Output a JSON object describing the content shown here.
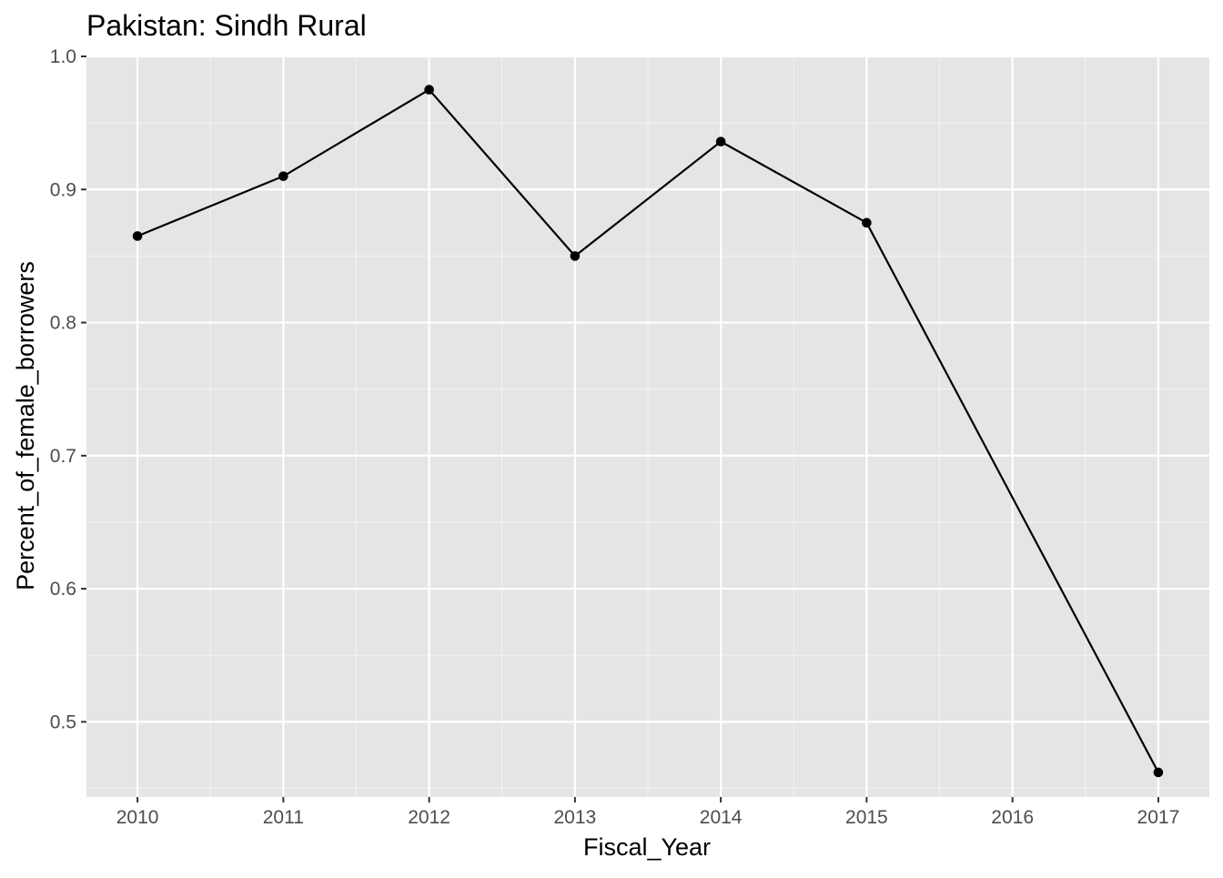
{
  "chart_data": {
    "type": "line",
    "title": "Pakistan:  Sindh Rural",
    "xlabel": "Fiscal_Year",
    "ylabel": "Percent_of_female_borrowers",
    "x": [
      2010,
      2011,
      2012,
      2013,
      2014,
      2015,
      2017
    ],
    "series": [
      {
        "values": [
          0.865,
          0.91,
          0.975,
          0.85,
          0.936,
          0.875,
          0.462
        ]
      }
    ],
    "xticks": [
      2010,
      2011,
      2012,
      2013,
      2014,
      2015,
      2016,
      2017
    ],
    "xtick_labels": [
      "2010",
      "2011",
      "2012",
      "2013",
      "2014",
      "2015",
      "2016",
      "2017"
    ],
    "yticks": [
      0.5,
      0.6,
      0.7,
      0.8,
      0.9,
      1.0
    ],
    "ytick_labels": [
      "0.5",
      "0.6",
      "0.7",
      "0.8",
      "0.9",
      "1.0"
    ],
    "xlim": [
      2009.65,
      2017.35
    ],
    "ylim": [
      0.4435,
      1.0
    ],
    "grid": true,
    "colors": {
      "panel_background": "#e5e5e5",
      "grid_major": "#ffffff",
      "grid_minor": "#f2f2f2",
      "line": "#000000",
      "point": "#000000",
      "tick_label": "#4d4d4d",
      "tick_mark": "#333333"
    }
  }
}
